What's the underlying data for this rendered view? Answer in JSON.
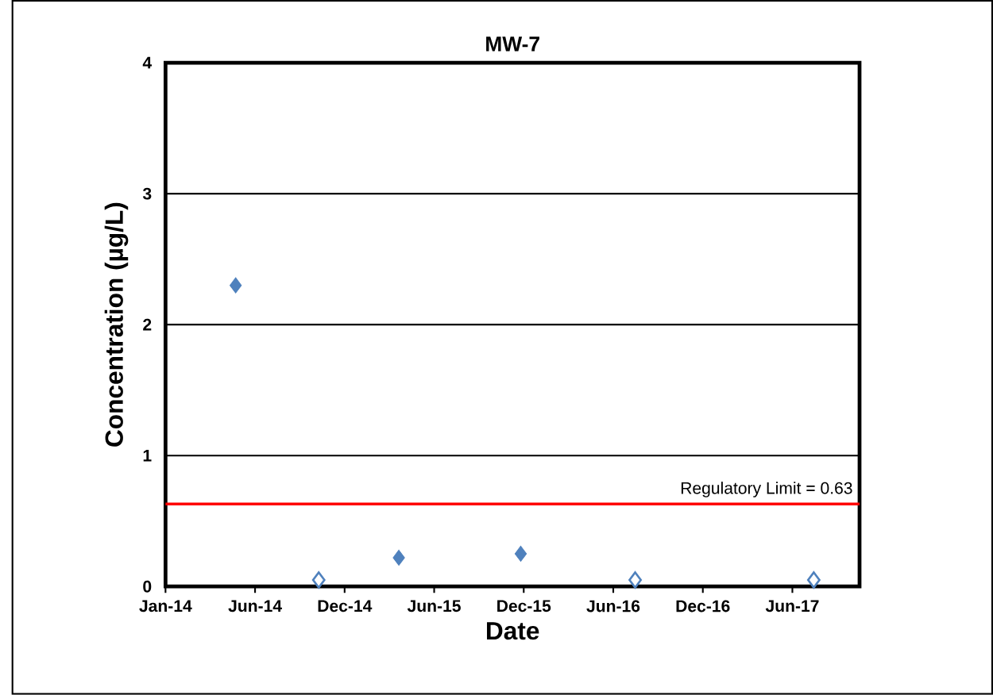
{
  "chart_data": {
    "type": "scatter",
    "title": "MW-7",
    "xlabel": "Date",
    "ylabel": "Concentration (µg/L)",
    "series": [
      {
        "color": "#4f81bd",
        "x": [
          "2014-05-22",
          "2015-04-15",
          "2015-12-16"
        ],
        "values": [
          2.3,
          0.22,
          0.25
        ]
      },
      {
        "color": "#ffffff",
        "x": [
          "2014-11-05",
          "2016-08-02",
          "2017-07-27"
        ],
        "values": [
          0.05,
          0.05,
          0.05
        ]
      }
    ],
    "marker": "diamond",
    "xlim": [
      "2014-01-01",
      "2017-10-27"
    ],
    "xticks": [
      {
        "value": "2014-01-01",
        "label": "Jan-14"
      },
      {
        "value": "2014-06-30",
        "label": "Jun-14"
      },
      {
        "value": "2014-12-27",
        "label": "Dec-14"
      },
      {
        "value": "2015-06-25",
        "label": "Jun-15"
      },
      {
        "value": "2015-12-22",
        "label": "Dec-15"
      },
      {
        "value": "2016-06-19",
        "label": "Jun-16"
      },
      {
        "value": "2016-12-16",
        "label": "Dec-16"
      },
      {
        "value": "2017-06-14",
        "label": "Jun-17"
      }
    ],
    "ylim": [
      0,
      4
    ],
    "yticks": [
      0,
      1,
      2,
      3,
      4
    ],
    "grid": "y",
    "ref_lines": [
      {
        "axis": "y",
        "value": 0.63,
        "label": "Regulatory Limit = 0.63",
        "color": "#ff0000"
      }
    ]
  }
}
